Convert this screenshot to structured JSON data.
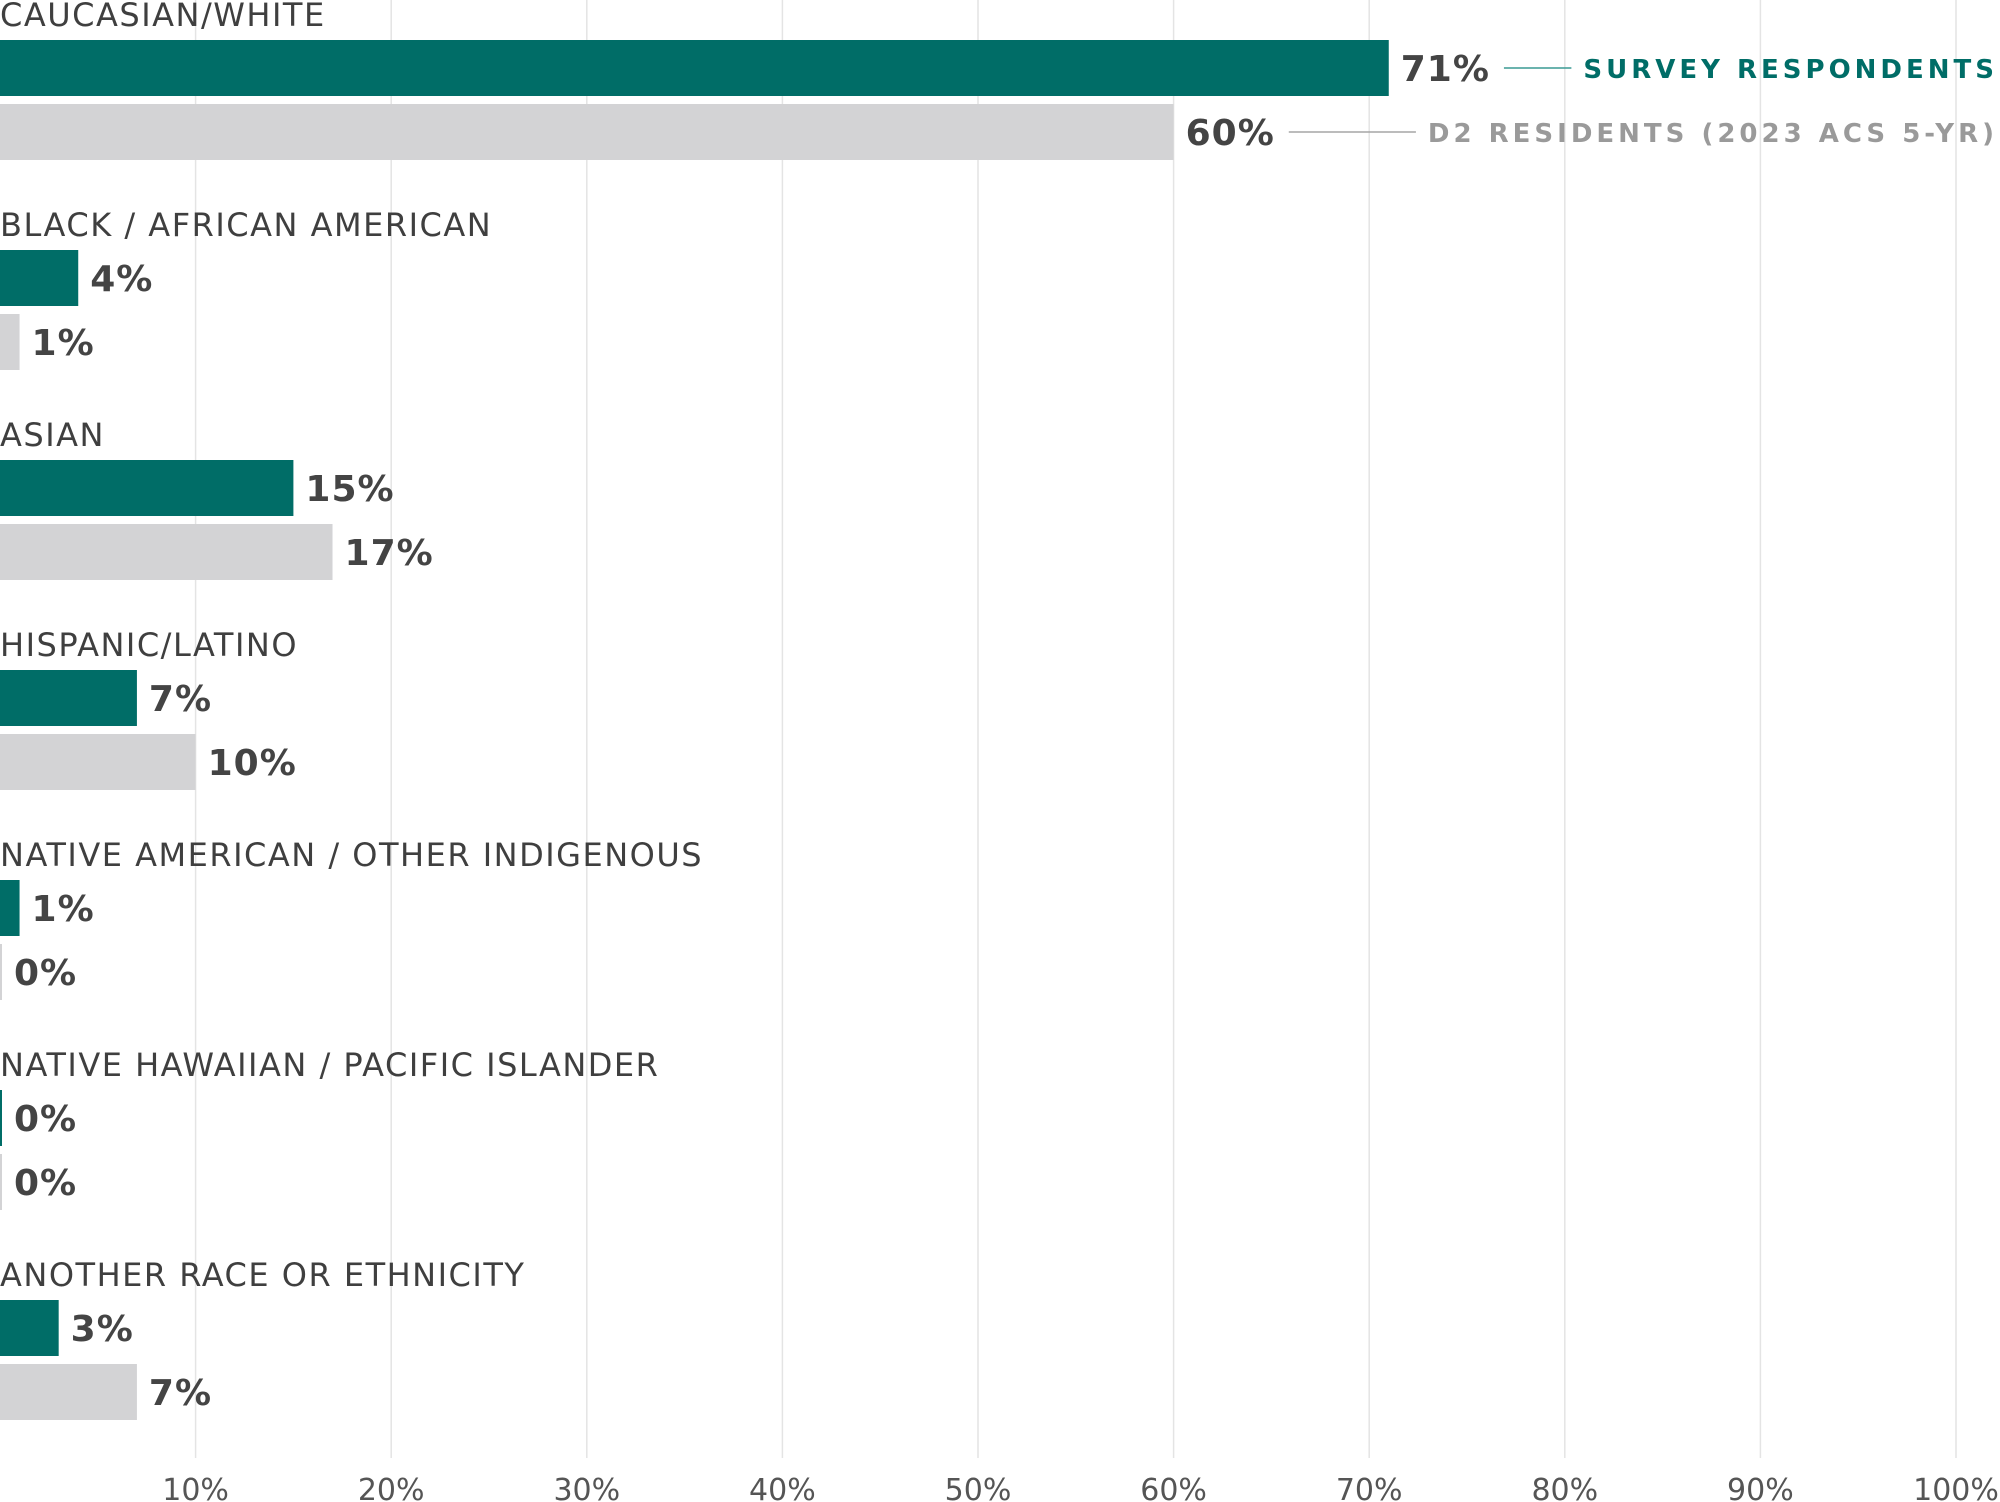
{
  "chart_data": {
    "type": "bar",
    "orientation": "horizontal",
    "categories": [
      "CAUCASIAN/WHITE",
      "BLACK / AFRICAN AMERICAN",
      "ASIAN",
      "HISPANIC/LATINO",
      "NATIVE AMERICAN / OTHER INDIGENOUS",
      "NATIVE HAWAIIAN / PACIFIC ISLANDER",
      "ANOTHER RACE OR ETHNICITY"
    ],
    "series": [
      {
        "name": "SURVEY RESPONDENTS",
        "color": "#006d67",
        "values": [
          71,
          4,
          15,
          7,
          1,
          0,
          3
        ],
        "labels": [
          "71%",
          "4%",
          "15%",
          "7%",
          "1%",
          "0%",
          "3%"
        ]
      },
      {
        "name": "D2 RESIDENTS (2023 ACS 5-YR)",
        "color": "#d3d3d5",
        "values": [
          60,
          1,
          17,
          10,
          0,
          0,
          7
        ],
        "labels": [
          "60%",
          "1%",
          "17%",
          "10%",
          "0%",
          "0%",
          "7%"
        ]
      }
    ],
    "xlim": [
      0,
      100
    ],
    "x_ticks": [
      10,
      20,
      30,
      40,
      50,
      60,
      70,
      80,
      90,
      100
    ],
    "x_tick_labels": [
      "10%",
      "20%",
      "30%",
      "40%",
      "50%",
      "60%",
      "70%",
      "80%",
      "90%",
      "100%"
    ],
    "grid": true,
    "legend_placement": "inline-right-of-first-group",
    "legend_label_colors": [
      "#006d67",
      "#9a9a9a"
    ]
  }
}
